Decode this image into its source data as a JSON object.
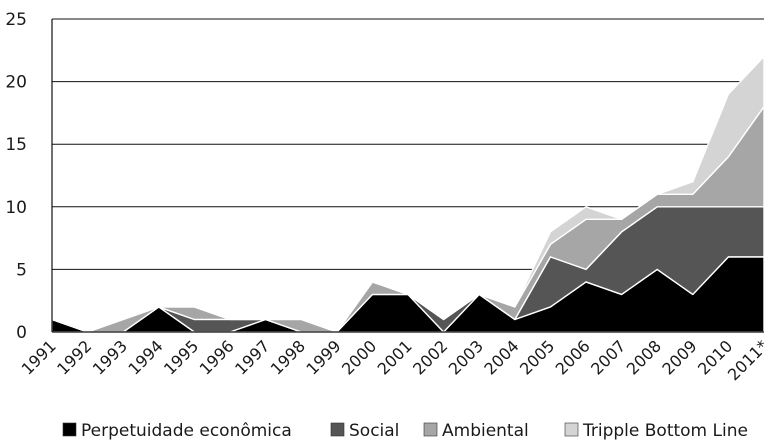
{
  "chart_data": {
    "type": "area",
    "stacked": true,
    "title": "",
    "xlabel": "",
    "ylabel": "",
    "categories": [
      "1991",
      "1992",
      "1993",
      "1994",
      "1995",
      "1996",
      "1997",
      "1998",
      "1999",
      "2000",
      "2001",
      "2002",
      "2003",
      "2004",
      "2005",
      "2006",
      "2007",
      "2008",
      "2009",
      "2010",
      "2011*"
    ],
    "ylim": [
      0,
      25
    ],
    "yticks": [
      "0",
      "5",
      "10",
      "15",
      "20",
      "25"
    ],
    "grid": true,
    "legend": "bottom",
    "series": [
      {
        "name": "Perpetuidade econômica",
        "color": "#000000",
        "values": [
          1,
          0,
          0,
          2,
          0,
          0,
          1,
          0,
          0,
          3,
          3,
          0,
          3,
          1,
          2,
          4,
          3,
          5,
          3,
          6,
          6
        ]
      },
      {
        "name": "Social",
        "color": "#555555",
        "values": [
          0,
          0,
          0,
          0,
          1,
          1,
          0,
          0,
          0,
          0,
          0,
          1,
          0,
          0,
          4,
          1,
          5,
          5,
          7,
          4,
          4
        ]
      },
      {
        "name": "Ambiental",
        "color": "#a6a6a6",
        "values": [
          0,
          0,
          1,
          0,
          1,
          0,
          0,
          1,
          0,
          1,
          0,
          0,
          0,
          1,
          1,
          4,
          1,
          1,
          1,
          4,
          8
        ]
      },
      {
        "name": "Tripple Bottom Line",
        "color": "#d4d4d4",
        "values": [
          0,
          0,
          0,
          0,
          0,
          0,
          0,
          0,
          0,
          0,
          0,
          0,
          0,
          0,
          1,
          1,
          0,
          0,
          1,
          5,
          4
        ]
      }
    ]
  }
}
